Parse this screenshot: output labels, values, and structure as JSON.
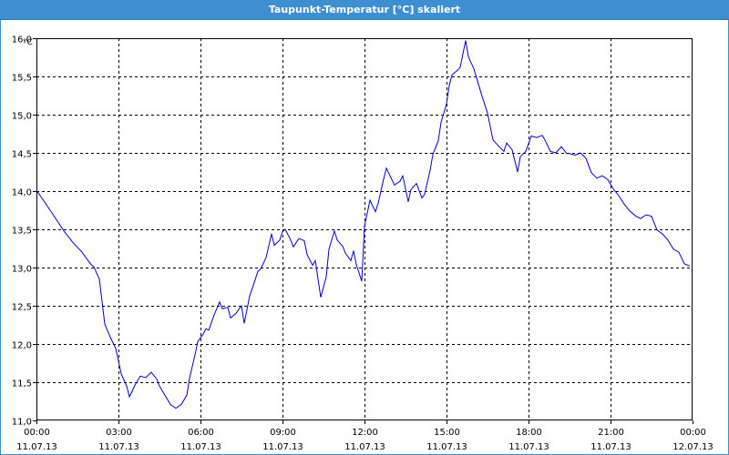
{
  "window": {
    "title": "Taupunkt-Temperatur [°C] skaliert",
    "accent_color": "#3d8fd1"
  },
  "chart_data": {
    "type": "line",
    "title": "Taupunkt-Temperatur [°C] skaliert",
    "xlabel": "",
    "ylabel": "°C",
    "unit": "°C",
    "xlim": [
      0,
      24
    ],
    "ylim": [
      11.0,
      16.0
    ],
    "grid": true,
    "x_ticks": [
      {
        "time": "00:00",
        "date": "11.07.13"
      },
      {
        "time": "03:00",
        "date": "11.07.13"
      },
      {
        "time": "06:00",
        "date": "11.07.13"
      },
      {
        "time": "09:00",
        "date": "11.07.13"
      },
      {
        "time": "12:00",
        "date": "11.07.13"
      },
      {
        "time": "15:00",
        "date": "11.07.13"
      },
      {
        "time": "18:00",
        "date": "11.07.13"
      },
      {
        "time": "21:00",
        "date": "11.07.13"
      },
      {
        "time": "00:00",
        "date": "12.07.13"
      }
    ],
    "y_ticks": [
      "11,0",
      "11,5",
      "12,0",
      "12,5",
      "13,0",
      "13,5",
      "14,0",
      "14,5",
      "15,0",
      "15,5",
      "16,0"
    ],
    "series": [
      {
        "color": "#0000cc",
        "x": [
          0.0,
          0.33,
          0.67,
          1.0,
          1.33,
          1.67,
          1.87,
          2.0,
          2.1,
          2.3,
          2.5,
          2.7,
          2.9,
          3.0,
          3.1,
          3.3,
          3.4,
          3.5,
          3.6,
          3.8,
          4.0,
          4.2,
          4.4,
          4.5,
          4.7,
          4.9,
          5.1,
          5.3,
          5.5,
          5.6,
          5.8,
          5.9,
          6.1,
          6.2,
          6.3,
          6.5,
          6.7,
          6.8,
          7.0,
          7.1,
          7.3,
          7.5,
          7.6,
          7.8,
          7.9,
          8.1,
          8.2,
          8.4,
          8.6,
          8.7,
          8.9,
          9.0,
          9.1,
          9.3,
          9.4,
          9.6,
          9.8,
          9.9,
          10.1,
          10.2,
          10.4,
          10.6,
          10.7,
          10.9,
          11.0,
          11.2,
          11.3,
          11.5,
          11.6,
          11.7,
          11.9,
          12.0,
          12.2,
          12.4,
          12.5,
          12.7,
          12.8,
          13.0,
          13.1,
          13.3,
          13.4,
          13.6,
          13.7,
          13.9,
          14.1,
          14.2,
          14.4,
          14.5,
          14.7,
          14.8,
          15.0,
          15.1,
          15.2,
          15.4,
          15.5,
          15.7,
          15.8,
          16.0,
          16.1,
          16.3,
          16.5,
          16.7,
          16.9,
          17.1,
          17.2,
          17.4,
          17.6,
          17.7,
          17.9,
          18.1,
          18.3,
          18.5,
          18.6,
          18.8,
          19.0,
          19.2,
          19.4,
          19.5,
          19.7,
          19.9,
          20.1,
          20.3,
          20.5,
          20.7,
          20.9,
          21.1,
          21.3,
          21.5,
          21.7,
          21.9,
          22.1,
          22.3,
          22.5,
          22.7,
          22.9,
          23.1,
          23.3,
          23.5,
          23.7,
          23.9
        ],
        "y": [
          14.01,
          13.84,
          13.66,
          13.48,
          13.33,
          13.2,
          13.1,
          13.04,
          13.01,
          12.85,
          12.26,
          12.09,
          11.94,
          11.78,
          11.61,
          11.45,
          11.31,
          11.38,
          11.46,
          11.58,
          11.56,
          11.63,
          11.54,
          11.45,
          11.33,
          11.21,
          11.16,
          11.21,
          11.33,
          11.55,
          11.86,
          12.03,
          12.13,
          12.2,
          12.18,
          12.38,
          12.55,
          12.46,
          12.48,
          12.34,
          12.4,
          12.5,
          12.27,
          12.63,
          12.73,
          12.95,
          12.98,
          13.13,
          13.44,
          13.29,
          13.36,
          13.47,
          13.5,
          13.36,
          13.27,
          13.38,
          13.35,
          13.17,
          13.03,
          13.09,
          12.61,
          12.88,
          13.24,
          13.48,
          13.36,
          13.28,
          13.19,
          13.09,
          13.22,
          13.04,
          12.82,
          13.54,
          13.88,
          13.73,
          13.84,
          14.16,
          14.3,
          14.15,
          14.08,
          14.13,
          14.2,
          13.86,
          14.02,
          14.1,
          13.91,
          13.96,
          14.27,
          14.48,
          14.66,
          14.9,
          15.14,
          15.38,
          15.52,
          15.58,
          15.62,
          15.97,
          15.76,
          15.6,
          15.48,
          15.24,
          15.02,
          14.67,
          14.59,
          14.52,
          14.63,
          14.54,
          14.25,
          14.45,
          14.52,
          14.72,
          14.7,
          14.73,
          14.67,
          14.52,
          14.5,
          14.58,
          14.49,
          14.49,
          14.47,
          14.5,
          14.43,
          14.24,
          14.17,
          14.2,
          14.15,
          14.03,
          13.94,
          13.83,
          13.74,
          13.68,
          13.64,
          13.69,
          13.67,
          13.49,
          13.44,
          13.36,
          13.24,
          13.2,
          13.05,
          13.02
        ]
      }
    ]
  }
}
